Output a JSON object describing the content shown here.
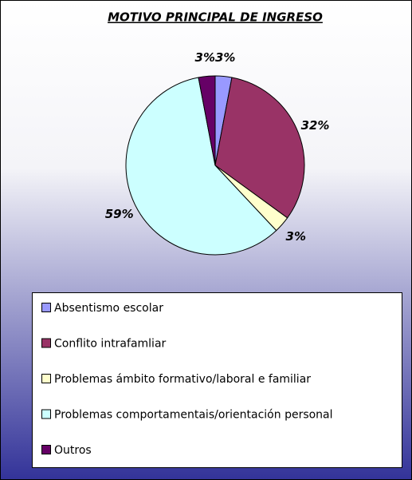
{
  "chart_data": {
    "type": "pie",
    "title": "MOTIVO PRINCIPAL DE INGRESO",
    "categories": [
      "Absentismo escolar",
      "Conflito intrafamliar",
      "Problemas ámbito formativo/laboral e familiar",
      "Problemas comportamentais/orientación personal",
      "Outros"
    ],
    "values": [
      3,
      32,
      3,
      59,
      3
    ],
    "value_labels": [
      "3%",
      "32%",
      "3%",
      "59%",
      "3%"
    ],
    "colors": [
      "#9999ff",
      "#993366",
      "#ffffcc",
      "#ccffff",
      "#660066"
    ],
    "legend": "bottom"
  }
}
